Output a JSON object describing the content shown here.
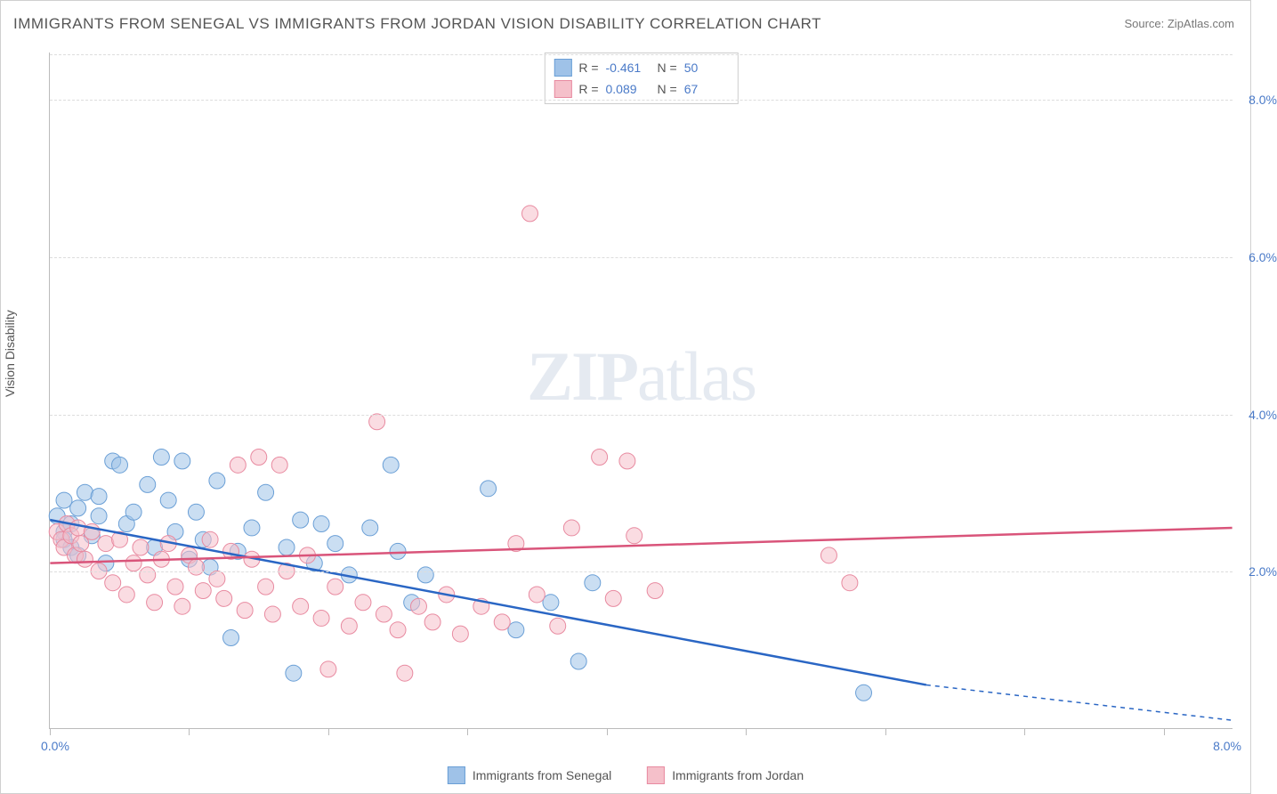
{
  "title": "IMMIGRANTS FROM SENEGAL VS IMMIGRANTS FROM JORDAN VISION DISABILITY CORRELATION CHART",
  "source": "Source: ZipAtlas.com",
  "watermark_a": "ZIP",
  "watermark_b": "atlas",
  "y_axis_label": "Vision Disability",
  "chart": {
    "type": "scatter",
    "xlim": [
      0,
      8.5
    ],
    "ylim": [
      0,
      8.6
    ],
    "x_min_label": "0.0%",
    "x_max_label": "8.0%",
    "y_ticks": [
      2.0,
      4.0,
      6.0,
      8.0
    ],
    "y_tick_labels": [
      "2.0%",
      "4.0%",
      "6.0%",
      "8.0%"
    ],
    "x_tick_positions": [
      0,
      1.0,
      2.0,
      3.0,
      4.0,
      5.0,
      6.0,
      7.0,
      8.0
    ],
    "grid_color": "#dddddd",
    "background_color": "#ffffff",
    "marker_radius": 9,
    "marker_opacity": 0.55,
    "line_width": 2.5,
    "tick_label_color": "#4a7ac8",
    "axis_label_color": "#555555",
    "series": [
      {
        "name": "Immigrants from Senegal",
        "color_fill": "#9fc2e8",
        "color_stroke": "#6a9fd6",
        "line_color": "#2a66c4",
        "r_label": "R =",
        "r_value": "-0.461",
        "n_label": "N =",
        "n_value": "50",
        "trend": {
          "x1": 0.0,
          "y1": 2.65,
          "x2": 6.3,
          "y2": 0.55,
          "x2_dash": 8.5,
          "y2_dash": 0.1
        },
        "points": [
          [
            0.05,
            2.7
          ],
          [
            0.1,
            2.5
          ],
          [
            0.1,
            2.4
          ],
          [
            0.1,
            2.9
          ],
          [
            0.15,
            2.3
          ],
          [
            0.15,
            2.6
          ],
          [
            0.2,
            2.8
          ],
          [
            0.2,
            2.2
          ],
          [
            0.25,
            3.0
          ],
          [
            0.3,
            2.45
          ],
          [
            0.35,
            2.95
          ],
          [
            0.4,
            2.1
          ],
          [
            0.45,
            3.4
          ],
          [
            0.5,
            3.35
          ],
          [
            0.55,
            2.6
          ],
          [
            0.6,
            2.75
          ],
          [
            0.7,
            3.1
          ],
          [
            0.75,
            2.3
          ],
          [
            0.8,
            3.45
          ],
          [
            0.85,
            2.9
          ],
          [
            0.9,
            2.5
          ],
          [
            0.95,
            3.4
          ],
          [
            1.0,
            2.15
          ],
          [
            1.05,
            2.75
          ],
          [
            1.1,
            2.4
          ],
          [
            1.15,
            2.05
          ],
          [
            1.2,
            3.15
          ],
          [
            1.3,
            1.15
          ],
          [
            1.35,
            2.25
          ],
          [
            1.45,
            2.55
          ],
          [
            1.55,
            3.0
          ],
          [
            1.7,
            2.3
          ],
          [
            1.75,
            0.7
          ],
          [
            1.8,
            2.65
          ],
          [
            1.9,
            2.1
          ],
          [
            1.95,
            2.6
          ],
          [
            2.05,
            2.35
          ],
          [
            2.15,
            1.95
          ],
          [
            2.3,
            2.55
          ],
          [
            2.45,
            3.35
          ],
          [
            2.5,
            2.25
          ],
          [
            2.6,
            1.6
          ],
          [
            2.7,
            1.95
          ],
          [
            3.15,
            3.05
          ],
          [
            3.35,
            1.25
          ],
          [
            3.6,
            1.6
          ],
          [
            3.8,
            0.85
          ],
          [
            3.9,
            1.85
          ],
          [
            5.85,
            0.45
          ],
          [
            0.35,
            2.7
          ]
        ]
      },
      {
        "name": "Immigrants from Jordan",
        "color_fill": "#f5c0ca",
        "color_stroke": "#e88aa0",
        "line_color": "#d9547a",
        "r_label": "R =",
        "r_value": "0.089",
        "n_label": "N =",
        "n_value": "67",
        "trend": {
          "x1": 0.0,
          "y1": 2.1,
          "x2": 8.5,
          "y2": 2.55
        },
        "points": [
          [
            0.05,
            2.5
          ],
          [
            0.08,
            2.4
          ],
          [
            0.1,
            2.3
          ],
          [
            0.12,
            2.6
          ],
          [
            0.15,
            2.45
          ],
          [
            0.18,
            2.2
          ],
          [
            0.2,
            2.55
          ],
          [
            0.22,
            2.35
          ],
          [
            0.25,
            2.15
          ],
          [
            0.3,
            2.5
          ],
          [
            0.35,
            2.0
          ],
          [
            0.4,
            2.35
          ],
          [
            0.45,
            1.85
          ],
          [
            0.5,
            2.4
          ],
          [
            0.55,
            1.7
          ],
          [
            0.6,
            2.1
          ],
          [
            0.65,
            2.3
          ],
          [
            0.7,
            1.95
          ],
          [
            0.75,
            1.6
          ],
          [
            0.8,
            2.15
          ],
          [
            0.85,
            2.35
          ],
          [
            0.9,
            1.8
          ],
          [
            0.95,
            1.55
          ],
          [
            1.0,
            2.2
          ],
          [
            1.05,
            2.05
          ],
          [
            1.1,
            1.75
          ],
          [
            1.15,
            2.4
          ],
          [
            1.2,
            1.9
          ],
          [
            1.25,
            1.65
          ],
          [
            1.3,
            2.25
          ],
          [
            1.35,
            3.35
          ],
          [
            1.4,
            1.5
          ],
          [
            1.45,
            2.15
          ],
          [
            1.5,
            3.45
          ],
          [
            1.55,
            1.8
          ],
          [
            1.6,
            1.45
          ],
          [
            1.65,
            3.35
          ],
          [
            1.7,
            2.0
          ],
          [
            1.8,
            1.55
          ],
          [
            1.85,
            2.2
          ],
          [
            1.95,
            1.4
          ],
          [
            2.0,
            0.75
          ],
          [
            2.05,
            1.8
          ],
          [
            2.15,
            1.3
          ],
          [
            2.25,
            1.6
          ],
          [
            2.35,
            3.9
          ],
          [
            2.4,
            1.45
          ],
          [
            2.5,
            1.25
          ],
          [
            2.55,
            0.7
          ],
          [
            2.65,
            1.55
          ],
          [
            2.75,
            1.35
          ],
          [
            2.85,
            1.7
          ],
          [
            2.95,
            1.2
          ],
          [
            3.1,
            1.55
          ],
          [
            3.25,
            1.35
          ],
          [
            3.35,
            2.35
          ],
          [
            3.45,
            6.55
          ],
          [
            3.5,
            1.7
          ],
          [
            3.65,
            1.3
          ],
          [
            3.75,
            2.55
          ],
          [
            3.95,
            3.45
          ],
          [
            4.05,
            1.65
          ],
          [
            4.15,
            3.4
          ],
          [
            4.2,
            2.45
          ],
          [
            4.35,
            1.75
          ],
          [
            5.6,
            2.2
          ],
          [
            5.75,
            1.85
          ]
        ]
      }
    ]
  },
  "bottom_legend": [
    {
      "label": "Immigrants from Senegal",
      "fill": "#9fc2e8",
      "stroke": "#6a9fd6"
    },
    {
      "label": "Immigrants from Jordan",
      "fill": "#f5c0ca",
      "stroke": "#e88aa0"
    }
  ]
}
